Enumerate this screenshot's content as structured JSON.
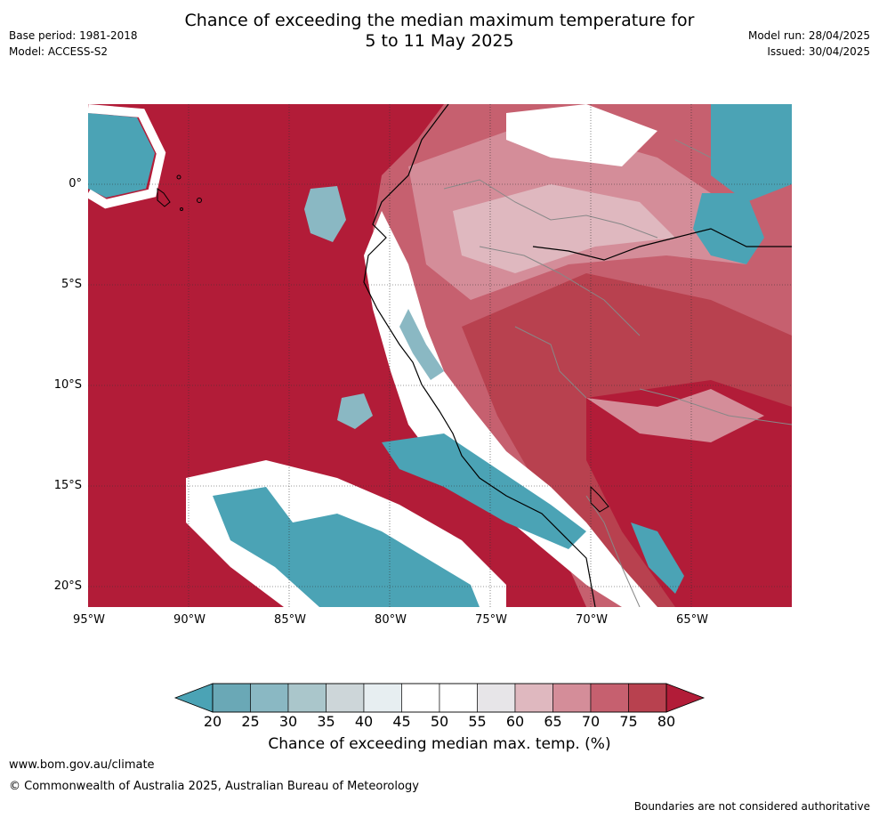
{
  "title_line1": "Chance of exceeding the median maximum temperature for",
  "title_line2": "5 to 11 May 2025",
  "meta_left": [
    "Base period: 1981-2018",
    "Model: ACCESS-S2"
  ],
  "meta_right": [
    "Model run: 28/04/2025",
    "Issued: 30/04/2025"
  ],
  "latitude_labels": [
    "0°",
    "5°S",
    "10°S",
    "15°S",
    "20°S"
  ],
  "longitude_labels": [
    "95°W",
    "90°W",
    "85°W",
    "80°W",
    "75°W",
    "70°W",
    "65°W"
  ],
  "colorbar": {
    "ticks": [
      "20",
      "25",
      "30",
      "35",
      "40",
      "45",
      "50",
      "55",
      "60",
      "65",
      "70",
      "75",
      "80"
    ],
    "colors": [
      "#6aa8b6",
      "#8ab8c3",
      "#aac6cb",
      "#cdd6d9",
      "#e7eef1",
      "#ffffff",
      "#ffffff",
      "#e7e5e8",
      "#dfb8bf",
      "#d48d99",
      "#c6606f",
      "#b8414f"
    ],
    "low_extend_color": "#4ba3b5",
    "high_extend_color": "#b21c38",
    "label": "Chance of exceeding median max. temp. (%)"
  },
  "colors": {
    "ocean_red": "#b21c38",
    "deep_red": "#b8414f",
    "mid_red": "#c6606f",
    "pink": "#d48d99",
    "light_pink": "#dfb8bf",
    "white": "#ffffff",
    "pale_grey": "#e7eef1",
    "teal": "#4ba3b5",
    "light_teal": "#8ab8c3"
  },
  "footer": {
    "url": "www.bom.gov.au/climate",
    "copyright": "© Commonwealth of Australia 2025, Australian Bureau of Meteorology",
    "note": "Boundaries are not considered authoritative"
  }
}
